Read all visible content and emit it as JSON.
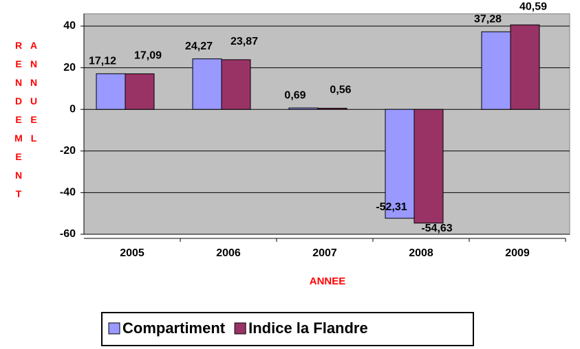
{
  "chart_data": {
    "type": "bar",
    "categories": [
      "2005",
      "2006",
      "2007",
      "2008",
      "2009"
    ],
    "series": [
      {
        "name": "Compartiment",
        "color": "#9999ff",
        "values": [
          17.12,
          24.27,
          0.69,
          -52.31,
          37.28
        ],
        "value_labels": [
          "17,12",
          "24,27",
          "0,69",
          "-52,31",
          "37,28"
        ]
      },
      {
        "name": "Indice la Flandre",
        "color": "#993366",
        "values": [
          17.09,
          23.87,
          0.56,
          -54.63,
          40.59
        ],
        "value_labels": [
          "17,09",
          "23,87",
          "0,56",
          "-54,63",
          "40,59"
        ]
      }
    ],
    "x_label": "ANNEE",
    "y_label": "RENDEMENT ANNUEL",
    "ylim": [
      -60,
      40
    ],
    "yticks": [
      -60,
      -40,
      -20,
      0,
      20,
      40
    ],
    "grid": true,
    "legend": "bottom"
  }
}
